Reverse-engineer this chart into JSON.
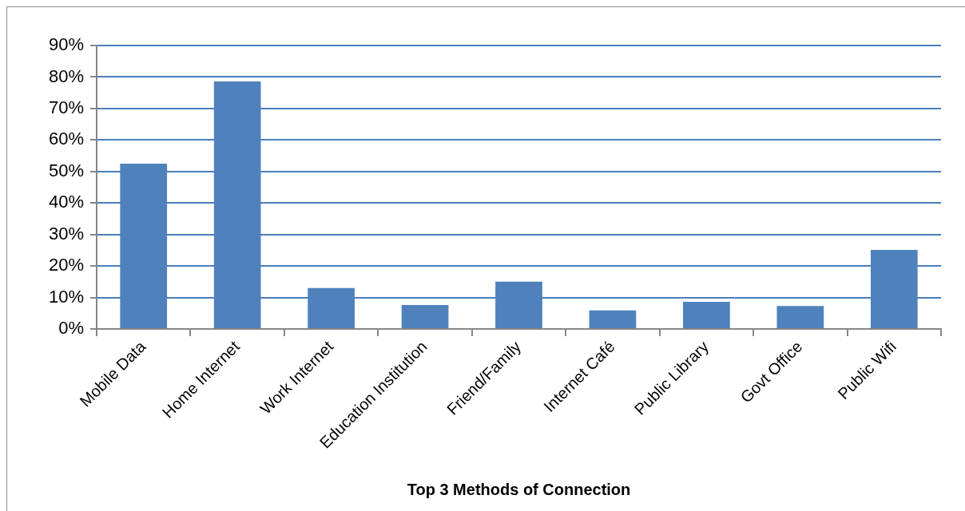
{
  "chart_data": {
    "type": "bar",
    "xlabel": "Top 3 Methods of Connection",
    "categories": [
      "Mobile Data",
      "Home Internet",
      "Work Internet",
      "Education Institution",
      "Friend/Family",
      "Internet Café",
      "Public Library",
      "Govt Office",
      "Public Wifi"
    ],
    "values": [
      52.5,
      78.6,
      13.0,
      7.6,
      15.0,
      5.9,
      8.6,
      7.3,
      25.1
    ],
    "color": "#4f81bd",
    "ylim": [
      0,
      90
    ],
    "yticks": [
      {
        "value": 0,
        "label": "0%"
      },
      {
        "value": 10,
        "label": "10%"
      },
      {
        "value": 20,
        "label": "20%"
      },
      {
        "value": 30,
        "label": "30%"
      },
      {
        "value": 40,
        "label": "40%"
      },
      {
        "value": 50,
        "label": "50%"
      },
      {
        "value": 60,
        "label": "60%"
      },
      {
        "value": 70,
        "label": "70%"
      },
      {
        "value": 80,
        "label": "80%"
      },
      {
        "value": 90,
        "label": "90%"
      }
    ],
    "grid": "y"
  }
}
